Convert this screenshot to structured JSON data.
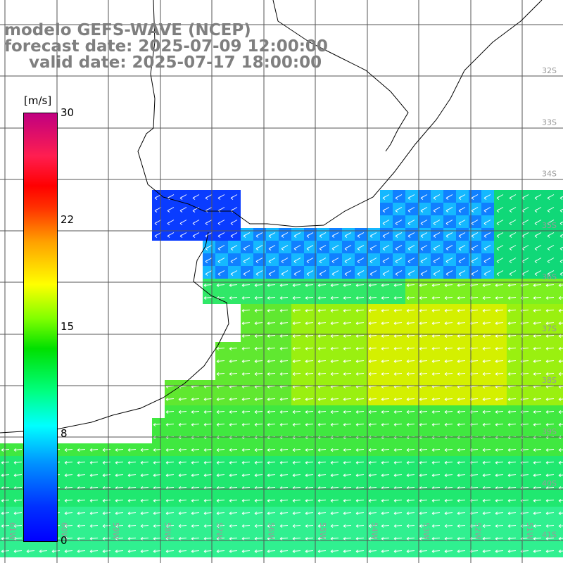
{
  "title": {
    "line1": "modelo GEFS-WAVE (NCEP)",
    "line2": "forecast date: 2025-07-09 12:00:00",
    "line3": "valid date: 2025-07-17 18:00:00"
  },
  "colorbar": {
    "unit": "[m/s]",
    "ticks": [
      "30",
      "22",
      "15",
      "8",
      "0"
    ],
    "tick_values": [
      30,
      22,
      15,
      8,
      0
    ],
    "min": 0,
    "max": 30
  },
  "map": {
    "lat_labels": [
      "32S",
      "33S",
      "34S",
      "35S",
      "36S",
      "37S",
      "38S",
      "39S",
      "40S",
      "41S"
    ],
    "lon_labels": [
      "61W",
      "60W",
      "59W",
      "58W",
      "57W",
      "56W",
      "55W",
      "54W",
      "53W",
      "52W",
      "51W"
    ],
    "colors": {
      "land": "#ffffff",
      "grid": "#555555",
      "coast": "#000000",
      "vector": "#ffffff"
    }
  }
}
